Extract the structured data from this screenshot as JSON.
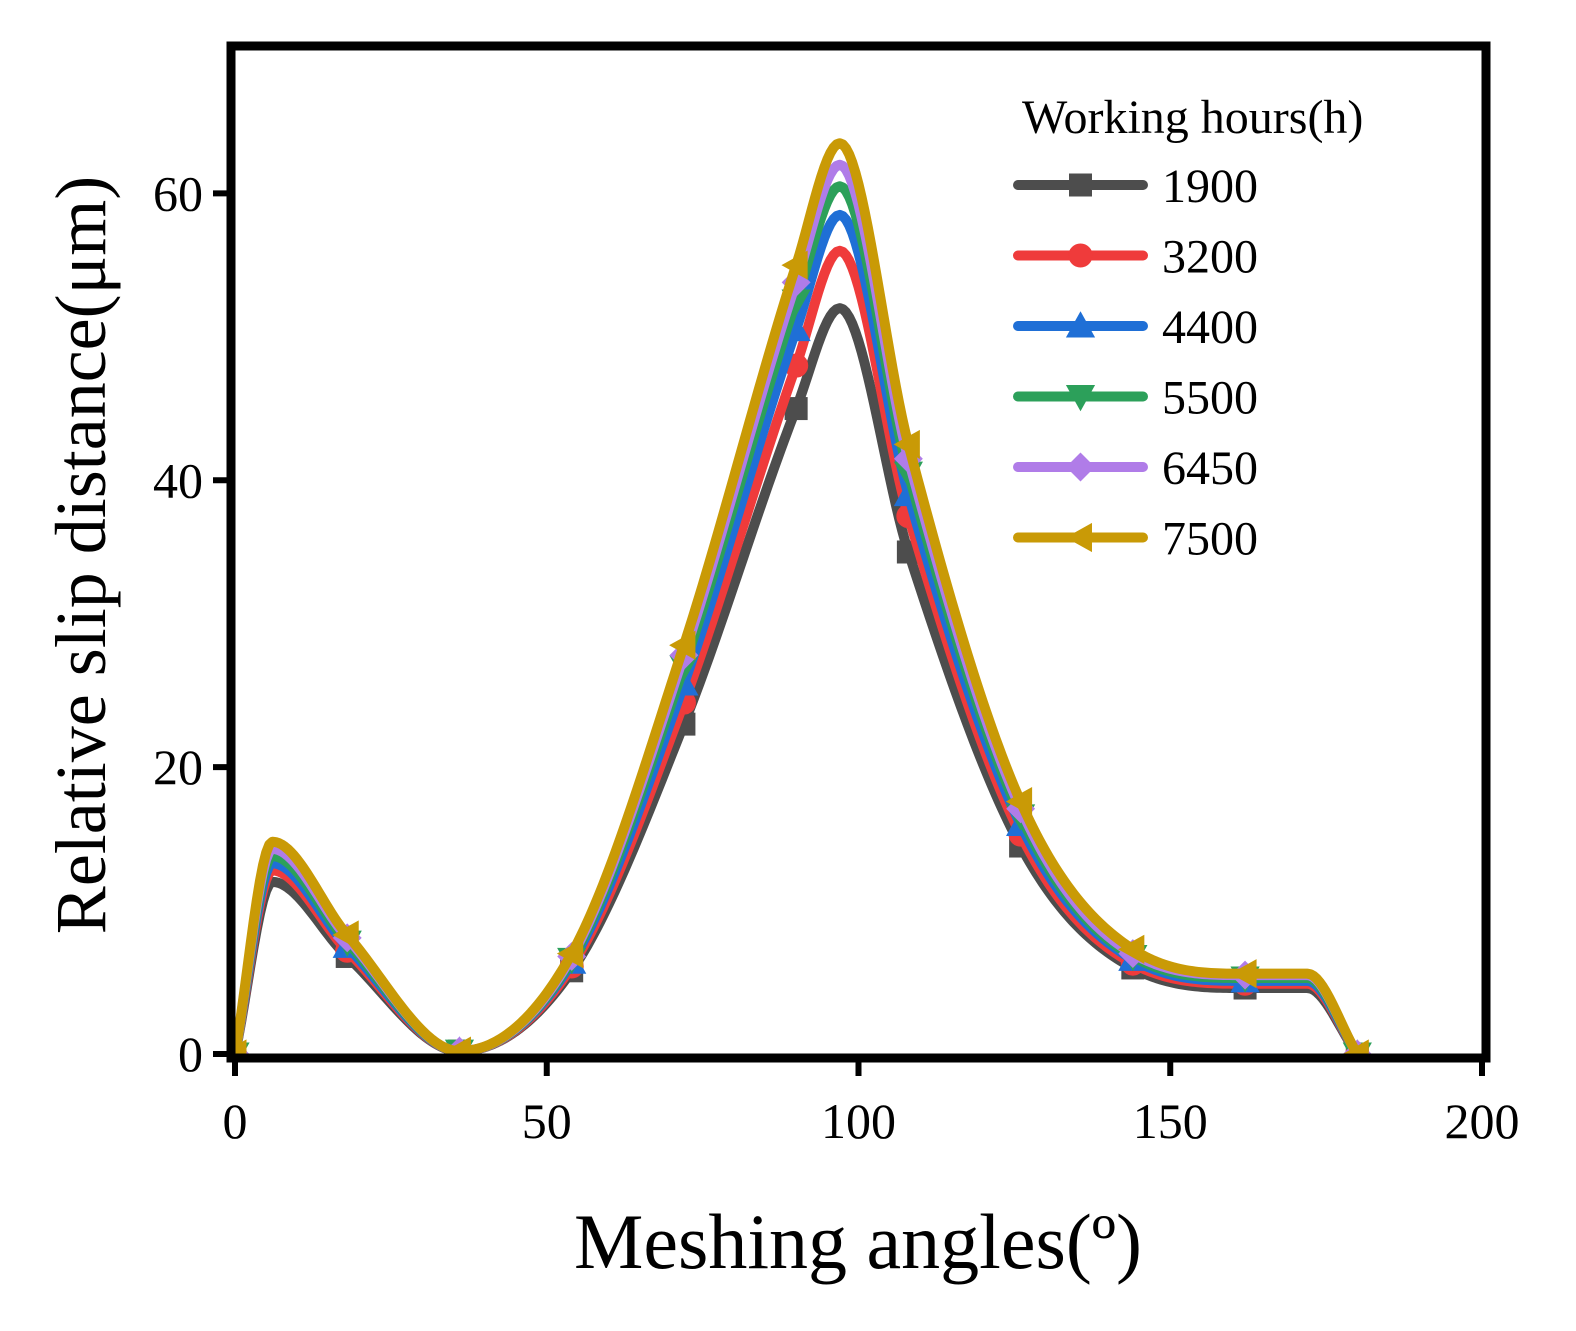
{
  "chart_data": {
    "type": "line",
    "title": "",
    "xlabel": "Meshing angles(º)",
    "ylabel": "Relative slip distance(μm)",
    "xlim": [
      0,
      200
    ],
    "ylim": [
      0,
      70
    ],
    "xticks": [
      0,
      50,
      100,
      150,
      200
    ],
    "yticks": [
      0,
      20,
      40,
      60
    ],
    "x_tick_labels": [
      "0",
      "50",
      "100",
      "150",
      "200"
    ],
    "y_tick_labels": [
      "0",
      "20",
      "40",
      "60"
    ],
    "grid": false,
    "legend": {
      "title": "Working hours(h)",
      "position": "top-right"
    },
    "x": [
      0,
      6,
      18,
      36,
      54,
      72,
      90,
      97,
      108,
      126,
      144,
      162,
      172,
      180
    ],
    "markers": {
      "1900": "square",
      "3200": "circle",
      "4400": "triangle-up",
      "5500": "triangle-down",
      "6450": "diamond",
      "7500": "triangle-left"
    },
    "series": [
      {
        "name": "1900",
        "color": "#4d4d4d",
        "marker": "square",
        "values": [
          0,
          12.0,
          6.8,
          0.2,
          5.8,
          23.0,
          45.0,
          52.0,
          35.0,
          14.5,
          6.0,
          4.6,
          4.6,
          0
        ],
        "marker_x": [
          0,
          18,
          36,
          54,
          72,
          90,
          108,
          126,
          144,
          162,
          180
        ]
      },
      {
        "name": "3200",
        "color": "#ef3b3b",
        "marker": "circle",
        "values": [
          0,
          12.8,
          7.2,
          0.2,
          6.1,
          24.5,
          48.0,
          56.0,
          37.5,
          15.3,
          6.3,
          4.9,
          4.9,
          0
        ],
        "marker_x": [
          0,
          18,
          36,
          54,
          72,
          90,
          108,
          126,
          144,
          162,
          180
        ]
      },
      {
        "name": "4400",
        "color": "#1f6fd6",
        "marker": "triangle-up",
        "values": [
          0,
          13.3,
          7.5,
          0.2,
          6.4,
          25.8,
          50.5,
          58.5,
          39.0,
          16.0,
          6.6,
          5.1,
          5.1,
          0
        ],
        "marker_x": [
          0,
          18,
          36,
          54,
          72,
          90,
          108,
          126,
          144,
          162,
          180
        ]
      },
      {
        "name": "5500",
        "color": "#2ca05a",
        "marker": "triangle-down",
        "values": [
          0,
          13.8,
          7.8,
          0.2,
          6.6,
          27.0,
          52.5,
          60.5,
          40.5,
          16.6,
          6.8,
          5.3,
          5.3,
          0
        ],
        "marker_x": [
          0,
          18,
          36,
          54,
          72,
          90,
          108,
          126,
          144,
          162,
          180
        ]
      },
      {
        "name": "6450",
        "color": "#b07ce8",
        "marker": "diamond",
        "values": [
          0,
          14.3,
          8.1,
          0.2,
          6.8,
          27.8,
          53.8,
          62.0,
          41.5,
          17.1,
          7.0,
          5.5,
          5.5,
          0
        ],
        "marker_x": [
          0,
          18,
          36,
          54,
          72,
          90,
          108,
          126,
          144,
          162,
          180
        ]
      },
      {
        "name": "7500",
        "color": "#c99a06",
        "marker": "triangle-left",
        "values": [
          0,
          14.8,
          8.3,
          0.2,
          7.0,
          28.5,
          55.0,
          63.5,
          42.5,
          17.6,
          7.3,
          5.6,
          5.6,
          0
        ],
        "marker_x": [
          0,
          18,
          36,
          54,
          72,
          90,
          108,
          126,
          144,
          162,
          180
        ]
      }
    ]
  }
}
